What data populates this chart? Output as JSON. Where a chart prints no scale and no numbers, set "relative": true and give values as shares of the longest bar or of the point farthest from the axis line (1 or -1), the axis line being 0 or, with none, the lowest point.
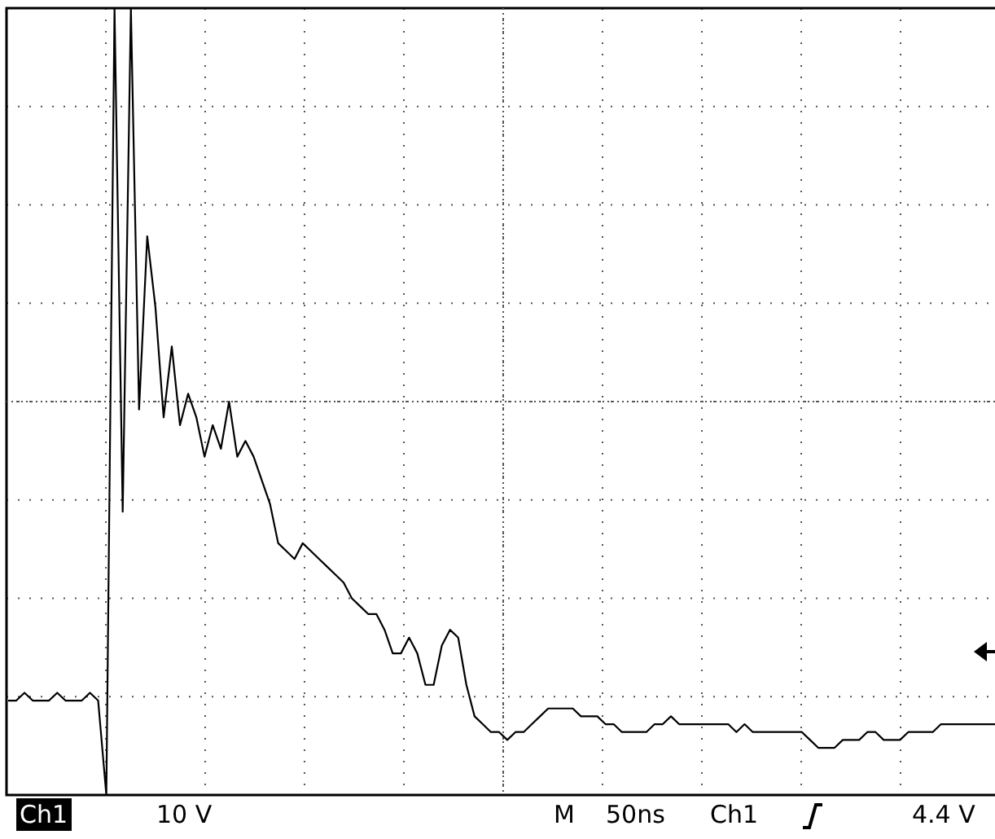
{
  "chart_data": {
    "type": "line",
    "relative": true,
    "grid": true,
    "marker": "none",
    "line_style": "solid",
    "tick_labels": false,
    "categories": [
      null,
      null,
      null,
      null,
      null,
      null,
      null,
      null,
      null,
      null,
      null,
      null,
      null,
      null,
      null,
      null,
      null,
      null,
      null,
      null,
      null,
      null,
      null,
      null,
      null,
      null,
      null,
      null,
      null,
      null,
      null,
      null,
      null,
      null,
      null,
      null,
      null,
      null,
      null,
      null,
      null,
      null,
      null,
      null,
      null,
      null,
      null,
      null,
      null,
      null,
      null,
      null,
      null,
      null,
      null,
      null,
      null,
      null,
      null,
      null,
      null,
      null,
      null,
      null,
      null,
      null,
      null,
      null,
      null,
      null,
      null,
      null,
      null,
      null,
      null,
      null,
      null,
      null,
      null,
      null,
      null,
      null,
      null,
      null,
      null,
      null,
      null,
      null,
      null,
      null,
      null,
      null,
      null,
      null,
      null,
      null,
      null,
      null,
      null,
      null,
      null,
      null,
      null,
      null,
      null,
      null,
      null,
      null,
      null,
      null,
      null,
      null,
      null,
      null,
      null,
      null,
      null,
      null,
      null,
      null,
      null,
      null
    ],
    "series": [
      {
        "color": "#000000",
        "values": [
          0.12,
          0.12,
          0.13,
          0.12,
          0.12,
          0.12,
          0.13,
          0.12,
          0.12,
          0.12,
          0.13,
          0.12,
          0,
          1,
          0.36,
          1,
          0.49,
          0.71,
          0.62,
          0.48,
          0.57,
          0.47,
          0.51,
          0.48,
          0.43,
          0.47,
          0.44,
          0.5,
          0.43,
          0.45,
          0.43,
          0.4,
          0.37,
          0.32,
          0.31,
          0.3,
          0.32,
          0.31,
          0.3,
          0.29,
          0.28,
          0.27,
          0.25,
          0.24,
          0.23,
          0.23,
          0.21,
          0.18,
          0.18,
          0.2,
          0.18,
          0.14,
          0.14,
          0.19,
          0.21,
          0.2,
          0.14,
          0.1,
          0.09,
          0.08,
          0.08,
          0.07,
          0.08,
          0.08,
          0.09,
          0.1,
          0.11,
          0.11,
          0.11,
          0.11,
          0.1,
          0.1,
          0.1,
          0.09,
          0.09,
          0.08,
          0.08,
          0.08,
          0.08,
          0.09,
          0.09,
          0.1,
          0.09,
          0.09,
          0.09,
          0.09,
          0.09,
          0.09,
          0.09,
          0.08,
          0.09,
          0.08,
          0.08,
          0.08,
          0.08,
          0.08,
          0.08,
          0.08,
          0.07,
          0.06,
          0.06,
          0.06,
          0.07,
          0.07,
          0.07,
          0.08,
          0.08,
          0.07,
          0.07,
          0.07,
          0.08,
          0.08,
          0.08,
          0.08,
          0.09,
          0.09,
          0.09,
          0.09,
          0.09,
          0.09,
          0.09,
          0.09
        ]
      }
    ],
    "annotations": [
      "Ch1",
      "10 V",
      "M",
      "50ns",
      "Ch1",
      "4.4 V"
    ]
  }
}
